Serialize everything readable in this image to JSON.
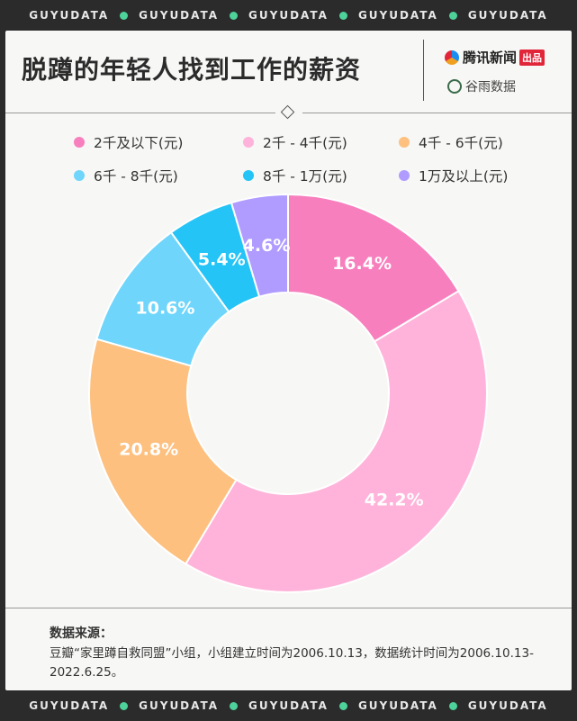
{
  "ticker": {
    "text": "GUYUDATA",
    "repeat": 5
  },
  "header": {
    "title": "脱蹲的年轻人找到工作的薪资",
    "logo_primary": "腾讯新闻",
    "logo_primary_badge": "出品",
    "logo_secondary": "谷雨数据"
  },
  "chart_data": {
    "type": "pie",
    "donut": true,
    "legend_position": "top",
    "categories": [
      "2千及以下(元)",
      "2千 - 4千(元)",
      "4千 - 6千(元)",
      "6千 - 8千(元)",
      "8千 - 1万(元)",
      "1万及以上(元)"
    ],
    "values": [
      16.4,
      42.2,
      20.8,
      10.6,
      5.4,
      4.6
    ],
    "data_labels": [
      "16.4%",
      "42.2%",
      "20.8%",
      "10.6%",
      "5.4%",
      "4.6%"
    ],
    "colors": [
      "#f77fbe",
      "#ffb3da",
      "#fdc07f",
      "#6fd5fb",
      "#24c4f7",
      "#b09cff"
    ]
  },
  "source": {
    "title": "数据来源：",
    "text": "豆瓣“家里蹲自救同盟”小组，小组建立时间为2006.10.13，数据统计时间为2006.10.13-2022.6.25。"
  }
}
